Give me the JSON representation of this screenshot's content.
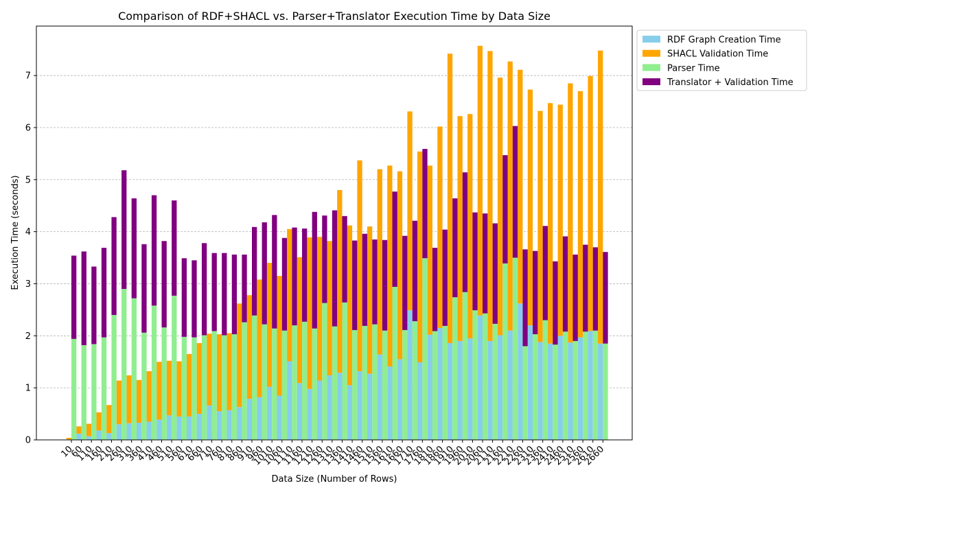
{
  "chart_data": {
    "type": "bar",
    "title": "Comparison of RDF+SHACL vs. Parser+Translator Execution Time by Data Size",
    "xlabel": "Data Size (Number of Rows)",
    "ylabel": "Execution Time (seconds)",
    "ylim": [
      0,
      7.95
    ],
    "yticks": [
      0,
      1,
      2,
      3,
      4,
      5,
      6,
      7
    ],
    "grid": "y-dashed",
    "legend_position": "upper-right-outside",
    "categories": [
      "10",
      "60",
      "110",
      "160",
      "210",
      "260",
      "310",
      "360",
      "410",
      "460",
      "510",
      "560",
      "610",
      "660",
      "710",
      "760",
      "810",
      "860",
      "910",
      "960",
      "1010",
      "1060",
      "1110",
      "1160",
      "1210",
      "1260",
      "1310",
      "1360",
      "1410",
      "1460",
      "1510",
      "1560",
      "1610",
      "1660",
      "1710",
      "1760",
      "1810",
      "1860",
      "1910",
      "1960",
      "2010",
      "2060",
      "2110",
      "2160",
      "2210",
      "2260",
      "2310",
      "2360",
      "2410",
      "2460",
      "2510",
      "2560",
      "2610",
      "2660"
    ],
    "groups": [
      {
        "name": "RDF+SHACL",
        "series": [
          {
            "name": "RDF Graph Creation Time",
            "color": "#87ceeb",
            "values": [
              0.01,
              0.12,
              0.07,
              0.18,
              0.13,
              0.3,
              0.32,
              0.33,
              0.35,
              0.39,
              0.47,
              0.45,
              0.45,
              0.5,
              0.66,
              0.55,
              0.57,
              0.63,
              0.79,
              0.82,
              1.02,
              0.85,
              1.51,
              1.09,
              0.98,
              1.14,
              1.24,
              1.29,
              1.05,
              1.32,
              1.27,
              1.64,
              1.41,
              1.55,
              2.49,
              1.49,
              2.02,
              2.15,
              1.86,
              1.9,
              1.95,
              2.39,
              1.9,
              2.01,
              2.1,
              2.62,
              2.2,
              1.88,
              1.85,
              2.0,
              1.87,
              1.97,
              2.09,
              1.85
            ]
          },
          {
            "name": "SHACL Validation Time",
            "color": "#ffa500",
            "values": [
              0.03,
              0.14,
              0.24,
              0.35,
              0.54,
              0.84,
              0.92,
              0.82,
              0.97,
              1.11,
              1.05,
              1.06,
              1.2,
              1.36,
              1.38,
              1.48,
              1.48,
              1.99,
              1.99,
              2.26,
              2.38,
              2.3,
              2.54,
              2.42,
              2.91,
              2.76,
              2.58,
              3.51,
              3.07,
              4.05,
              2.83,
              3.56,
              3.86,
              3.61,
              3.82,
              4.05,
              3.25,
              3.87,
              5.56,
              4.32,
              4.31,
              5.18,
              5.57,
              4.95,
              5.17,
              4.49,
              4.53,
              4.44,
              4.62,
              4.44,
              4.98,
              4.73,
              4.9,
              5.63
            ]
          }
        ]
      },
      {
        "name": "Parser+Translator",
        "series": [
          {
            "name": "Parser Time",
            "color": "#90ee90",
            "values": [
              1.94,
              1.82,
              1.84,
              1.97,
              2.4,
              2.9,
              2.72,
              2.06,
              2.58,
              2.16,
              2.77,
              1.98,
              1.97,
              2.01,
              2.09,
              2.01,
              2.03,
              2.26,
              2.39,
              2.22,
              2.14,
              2.1,
              2.2,
              2.27,
              2.14,
              2.63,
              2.18,
              2.64,
              2.11,
              2.19,
              2.22,
              2.1,
              2.94,
              2.11,
              2.28,
              3.49,
              2.09,
              2.19,
              2.74,
              2.84,
              2.49,
              2.43,
              2.23,
              3.39,
              3.5,
              1.8,
              2.03,
              2.3,
              1.83,
              2.08,
              1.9,
              2.08,
              2.1,
              1.85
            ]
          },
          {
            "name": "Translator + Validation Time",
            "color": "#800080",
            "values": [
              1.6,
              1.8,
              1.49,
              1.72,
              1.88,
              2.28,
              1.92,
              1.7,
              2.12,
              1.66,
              1.83,
              1.51,
              1.48,
              1.77,
              1.5,
              1.58,
              1.53,
              1.3,
              1.7,
              1.96,
              2.18,
              1.78,
              1.88,
              1.79,
              2.24,
              1.68,
              2.23,
              1.66,
              1.72,
              1.77,
              1.63,
              1.74,
              1.83,
              1.81,
              1.93,
              2.1,
              1.6,
              1.85,
              1.9,
              2.3,
              1.88,
              1.92,
              1.93,
              2.08,
              2.53,
              1.86,
              1.6,
              1.81,
              1.6,
              1.83,
              1.66,
              1.67,
              1.6,
              1.76
            ]
          }
        ]
      }
    ]
  }
}
